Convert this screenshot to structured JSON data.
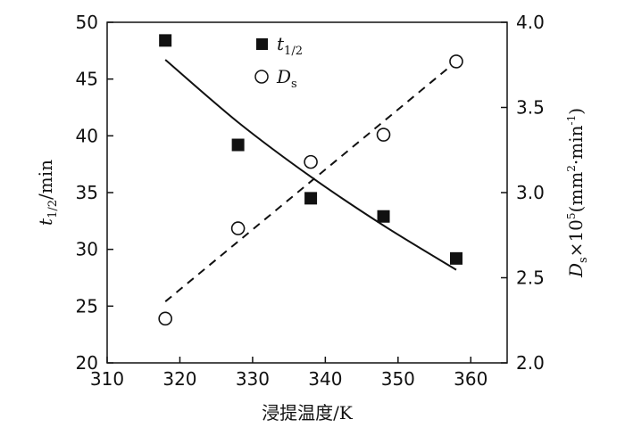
{
  "chart_data": {
    "type": "scatter",
    "xlabel": "浸提温度/K",
    "ylabel_left": {
      "main": "t",
      "sub": "1/2",
      "rest": "/min"
    },
    "ylabel_right": {
      "main": "D",
      "sub": "s",
      "mid": "×10",
      "sup": "5",
      "unit": "(mm",
      "unit_sup": "2",
      "unit_mid": "·min",
      "unit_sup2": "-1",
      "unit_end": ")"
    },
    "x_ticks": [
      "310",
      "320",
      "330",
      "340",
      "350",
      "360"
    ],
    "y_left_ticks": [
      "20",
      "25",
      "30",
      "35",
      "40",
      "45",
      "50"
    ],
    "y_right_ticks": [
      "2.0",
      "2.5",
      "3.0",
      "3.5",
      "4.0"
    ],
    "xlim": [
      310,
      365
    ],
    "ylim_left": [
      20,
      50
    ],
    "ylim_right": [
      2.0,
      4.0
    ],
    "grid": false,
    "legend_position": "top-center",
    "series": [
      {
        "name": "t1/2",
        "name_main": "t",
        "name_sub": "1/2",
        "axis": "left",
        "marker": "filled-square",
        "x": [
          318,
          328,
          338,
          348,
          358
        ],
        "y": [
          48.4,
          39.2,
          34.5,
          32.9,
          29.2
        ],
        "fit": {
          "style": "solid",
          "x": [
            318,
            328,
            338,
            348,
            358
          ],
          "y": [
            46.7,
            41.2,
            36.4,
            32.1,
            28.2
          ]
        }
      },
      {
        "name": "Ds",
        "name_main": "D",
        "name_sub": "s",
        "axis": "right",
        "marker": "open-circle",
        "x": [
          318,
          328,
          338,
          348,
          358
        ],
        "y": [
          2.26,
          2.79,
          3.18,
          3.34,
          3.77
        ],
        "fit": {
          "style": "dashed",
          "x": [
            318,
            358
          ],
          "y": [
            2.36,
            3.77
          ]
        }
      }
    ]
  }
}
